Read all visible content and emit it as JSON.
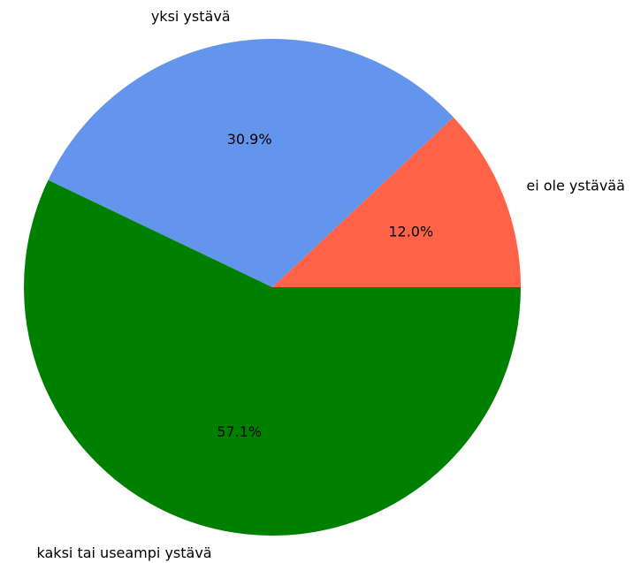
{
  "chart_data": {
    "type": "pie",
    "categories": [
      "ei ole ystävää",
      "yksi ystävä",
      "kaksi tai useampi ystävä"
    ],
    "values": [
      12.0,
      30.9,
      57.1
    ],
    "value_labels": [
      "12.0%",
      "30.9%",
      "57.1%"
    ],
    "colors": [
      "#ff6347",
      "#6495ed",
      "#008000"
    ]
  }
}
